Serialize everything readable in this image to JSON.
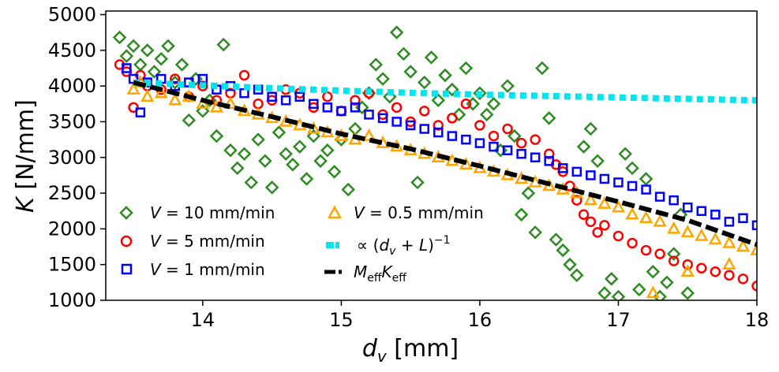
{
  "chart_data": {
    "type": "scatter",
    "title": "",
    "xlabel": {
      "main": "d",
      "sub": "v",
      "unit": " [mm]"
    },
    "ylabel": {
      "main": "K",
      "unit": " [N/mm]"
    },
    "xlim": [
      13.3,
      18.0
    ],
    "ylim": [
      1000,
      5050
    ],
    "xticks": [
      "14",
      "15",
      "16",
      "17",
      "18"
    ],
    "yticks": [
      "1000",
      "1500",
      "2000",
      "2500",
      "3000",
      "3500",
      "4000",
      "4500",
      "5000"
    ],
    "grid": false,
    "legend_position": "bottom-left",
    "series": [
      {
        "name": "V = 10 mm/min",
        "label": {
          "sym": "V",
          "rest": " = 10 mm/min"
        },
        "marker": "diamond",
        "color": "#2e8b22",
        "points": [
          [
            13.4,
            4680
          ],
          [
            13.45,
            4420
          ],
          [
            13.5,
            4560
          ],
          [
            13.55,
            4300
          ],
          [
            13.6,
            4500
          ],
          [
            13.65,
            4200
          ],
          [
            13.7,
            4380
          ],
          [
            13.75,
            4560
          ],
          [
            13.8,
            4050
          ],
          [
            13.85,
            4300
          ],
          [
            13.9,
            3520
          ],
          [
            13.95,
            4100
          ],
          [
            14.0,
            3650
          ],
          [
            14.05,
            3800
          ],
          [
            14.1,
            3300
          ],
          [
            14.15,
            4580
          ],
          [
            14.2,
            3100
          ],
          [
            14.25,
            2850
          ],
          [
            14.3,
            3050
          ],
          [
            14.35,
            2650
          ],
          [
            14.4,
            3250
          ],
          [
            14.45,
            2950
          ],
          [
            14.5,
            2580
          ],
          [
            14.55,
            3350
          ],
          [
            14.6,
            3050
          ],
          [
            14.65,
            2900
          ],
          [
            14.7,
            3150
          ],
          [
            14.75,
            2700
          ],
          [
            14.8,
            3300
          ],
          [
            14.85,
            2950
          ],
          [
            14.9,
            3100
          ],
          [
            14.95,
            2800
          ],
          [
            15.0,
            3250
          ],
          [
            15.05,
            2550
          ],
          [
            15.1,
            3400
          ],
          [
            15.15,
            3700
          ],
          [
            15.2,
            3900
          ],
          [
            15.25,
            4300
          ],
          [
            15.3,
            4100
          ],
          [
            15.35,
            3850
          ],
          [
            15.4,
            4750
          ],
          [
            15.45,
            4450
          ],
          [
            15.5,
            4200
          ],
          [
            15.55,
            2650
          ],
          [
            15.6,
            4050
          ],
          [
            15.65,
            4400
          ],
          [
            15.7,
            3800
          ],
          [
            15.75,
            4150
          ],
          [
            15.8,
            3950
          ],
          [
            15.85,
            3600
          ],
          [
            15.9,
            4250
          ],
          [
            15.95,
            3750
          ],
          [
            16.0,
            3900
          ],
          [
            16.05,
            3600
          ],
          [
            16.1,
            3750
          ],
          [
            16.15,
            3100
          ],
          [
            16.2,
            4000
          ],
          [
            16.25,
            3300
          ],
          [
            16.3,
            2200
          ],
          [
            16.35,
            2500
          ],
          [
            16.4,
            1950
          ],
          [
            16.45,
            4250
          ],
          [
            16.5,
            3550
          ],
          [
            16.55,
            1850
          ],
          [
            16.6,
            1700
          ],
          [
            16.65,
            1500
          ],
          [
            16.7,
            1350
          ],
          [
            16.75,
            3150
          ],
          [
            16.8,
            3400
          ],
          [
            16.85,
            2950
          ],
          [
            16.9,
            1100
          ],
          [
            16.95,
            1300
          ],
          [
            17.0,
            1050
          ],
          [
            17.05,
            3050
          ],
          [
            17.1,
            2850
          ],
          [
            17.15,
            1150
          ],
          [
            17.2,
            2700
          ],
          [
            17.25,
            1400
          ],
          [
            17.3,
            1050
          ],
          [
            17.35,
            1250
          ],
          [
            17.4,
            1650
          ],
          [
            17.45,
            2200
          ],
          [
            17.5,
            1100
          ]
        ]
      },
      {
        "name": "V = 5 mm/min",
        "label": {
          "sym": "V",
          "rest": " = 5 mm/min"
        },
        "marker": "circle",
        "color": "#ff0000",
        "points": [
          [
            13.4,
            4300
          ],
          [
            13.45,
            4200
          ],
          [
            13.5,
            3700
          ],
          [
            13.55,
            4150
          ],
          [
            13.6,
            4000
          ],
          [
            13.7,
            3950
          ],
          [
            13.8,
            4100
          ],
          [
            13.9,
            3850
          ],
          [
            14.0,
            4000
          ],
          [
            14.1,
            3800
          ],
          [
            14.2,
            3900
          ],
          [
            14.3,
            4150
          ],
          [
            14.4,
            3750
          ],
          [
            14.5,
            3800
          ],
          [
            14.6,
            3950
          ],
          [
            14.7,
            3900
          ],
          [
            14.8,
            3700
          ],
          [
            14.9,
            3850
          ],
          [
            15.0,
            3650
          ],
          [
            15.1,
            3800
          ],
          [
            15.2,
            3900
          ],
          [
            15.3,
            3600
          ],
          [
            15.4,
            3700
          ],
          [
            15.5,
            3500
          ],
          [
            15.6,
            3650
          ],
          [
            15.7,
            3450
          ],
          [
            15.8,
            3550
          ],
          [
            15.9,
            3750
          ],
          [
            16.0,
            3450
          ],
          [
            16.1,
            3300
          ],
          [
            16.2,
            3400
          ],
          [
            16.3,
            3200
          ],
          [
            16.4,
            3250
          ],
          [
            16.5,
            3050
          ],
          [
            16.55,
            2900
          ],
          [
            16.6,
            2800
          ],
          [
            16.65,
            2600
          ],
          [
            16.7,
            2400
          ],
          [
            16.75,
            2200
          ],
          [
            16.8,
            2100
          ],
          [
            16.85,
            1950
          ],
          [
            16.9,
            2050
          ],
          [
            17.0,
            1900
          ],
          [
            17.1,
            1800
          ],
          [
            17.2,
            1700
          ],
          [
            17.3,
            1650
          ],
          [
            17.4,
            1550
          ],
          [
            17.5,
            1500
          ],
          [
            17.6,
            1450
          ],
          [
            17.7,
            1400
          ],
          [
            17.8,
            1350
          ],
          [
            17.9,
            1300
          ],
          [
            18.0,
            1200
          ]
        ]
      },
      {
        "name": "V = 1 mm/min",
        "label": {
          "sym": "V",
          "rest": " = 1 mm/min"
        },
        "marker": "square",
        "color": "#0000ff",
        "points": [
          [
            13.45,
            4250
          ],
          [
            13.5,
            4100
          ],
          [
            13.55,
            3630
          ],
          [
            13.6,
            4050
          ],
          [
            13.7,
            4100
          ],
          [
            13.8,
            4000
          ],
          [
            13.9,
            4050
          ],
          [
            14.0,
            4100
          ],
          [
            14.1,
            3950
          ],
          [
            14.2,
            4000
          ],
          [
            14.3,
            3900
          ],
          [
            14.4,
            3950
          ],
          [
            14.5,
            3850
          ],
          [
            14.6,
            3800
          ],
          [
            14.7,
            3850
          ],
          [
            14.8,
            3750
          ],
          [
            14.9,
            3700
          ],
          [
            15.0,
            3650
          ],
          [
            15.1,
            3700
          ],
          [
            15.2,
            3600
          ],
          [
            15.3,
            3550
          ],
          [
            15.4,
            3500
          ],
          [
            15.5,
            3450
          ],
          [
            15.6,
            3400
          ],
          [
            15.7,
            3350
          ],
          [
            15.8,
            3300
          ],
          [
            15.9,
            3250
          ],
          [
            16.0,
            3200
          ],
          [
            16.1,
            3150
          ],
          [
            16.2,
            3100
          ],
          [
            16.3,
            3050
          ],
          [
            16.4,
            3000
          ],
          [
            16.5,
            2950
          ],
          [
            16.6,
            2850
          ],
          [
            16.7,
            2800
          ],
          [
            16.8,
            2750
          ],
          [
            16.9,
            2700
          ],
          [
            17.0,
            2650
          ],
          [
            17.1,
            2600
          ],
          [
            17.2,
            2550
          ],
          [
            17.3,
            2450
          ],
          [
            17.4,
            2400
          ],
          [
            17.5,
            2300
          ],
          [
            17.6,
            2250
          ],
          [
            17.7,
            2200
          ],
          [
            17.8,
            2100
          ],
          [
            17.9,
            2150
          ],
          [
            18.0,
            2050
          ]
        ]
      },
      {
        "name": "V = 0.5 mm/min",
        "label": {
          "sym": "V",
          "rest": " = 0.5 mm/min"
        },
        "marker": "triangle",
        "color": "#ffa500",
        "points": [
          [
            13.5,
            3950
          ],
          [
            13.55,
            4050
          ],
          [
            13.6,
            3850
          ],
          [
            13.7,
            3900
          ],
          [
            13.8,
            3800
          ],
          [
            13.9,
            3850
          ],
          [
            14.0,
            3750
          ],
          [
            14.1,
            3700
          ],
          [
            14.2,
            3750
          ],
          [
            14.3,
            3650
          ],
          [
            14.4,
            3600
          ],
          [
            14.5,
            3550
          ],
          [
            14.6,
            3500
          ],
          [
            14.7,
            3450
          ],
          [
            14.8,
            3400
          ],
          [
            14.9,
            3350
          ],
          [
            15.0,
            3300
          ],
          [
            15.1,
            3250
          ],
          [
            15.2,
            3300
          ],
          [
            15.3,
            3200
          ],
          [
            15.4,
            3150
          ],
          [
            15.5,
            3100
          ],
          [
            15.6,
            3050
          ],
          [
            15.7,
            3000
          ],
          [
            15.8,
            2950
          ],
          [
            15.9,
            2900
          ],
          [
            16.0,
            2850
          ],
          [
            16.1,
            2800
          ],
          [
            16.2,
            2750
          ],
          [
            16.3,
            2700
          ],
          [
            16.4,
            2650
          ],
          [
            16.5,
            2600
          ],
          [
            16.6,
            2550
          ],
          [
            16.7,
            2500
          ],
          [
            16.8,
            2400
          ],
          [
            16.9,
            2350
          ],
          [
            17.0,
            2300
          ],
          [
            17.1,
            2200
          ],
          [
            17.2,
            2150
          ],
          [
            17.3,
            2100
          ],
          [
            17.4,
            2000
          ],
          [
            17.5,
            1950
          ],
          [
            17.6,
            1900
          ],
          [
            17.7,
            1850
          ],
          [
            17.8,
            1800
          ],
          [
            17.9,
            1750
          ],
          [
            18.0,
            1700
          ],
          [
            17.25,
            1100
          ],
          [
            17.5,
            1400
          ],
          [
            17.8,
            1500
          ]
        ]
      }
    ],
    "lines": [
      {
        "name": "∝ (d_v + L)^-1",
        "label": {
          "pre": "∝ (",
          "sym": "d",
          "sub": "v",
          "mid": " + ",
          "sym2": "L",
          "post": ")",
          "sup": "−1"
        },
        "style": "dotted",
        "color": "#00e5ee",
        "x": [
          13.5,
          14.0,
          14.5,
          15.0,
          15.5,
          16.0,
          16.5,
          17.0,
          17.5,
          18.0
        ],
        "y": [
          4050,
          4010,
          3970,
          3935,
          3905,
          3880,
          3860,
          3840,
          3820,
          3800
        ]
      },
      {
        "name": "M_eff K_eff",
        "label": {
          "sym": "M",
          "sub": "eff",
          "sym2": "K",
          "sub2": "eff"
        },
        "style": "dashed",
        "color": "#000000",
        "x": [
          13.5,
          14.0,
          14.5,
          15.0,
          15.5,
          16.0,
          16.5,
          17.0,
          17.5,
          18.0
        ],
        "y": [
          4050,
          3800,
          3570,
          3330,
          3120,
          2880,
          2630,
          2380,
          2120,
          1780
        ]
      }
    ]
  }
}
